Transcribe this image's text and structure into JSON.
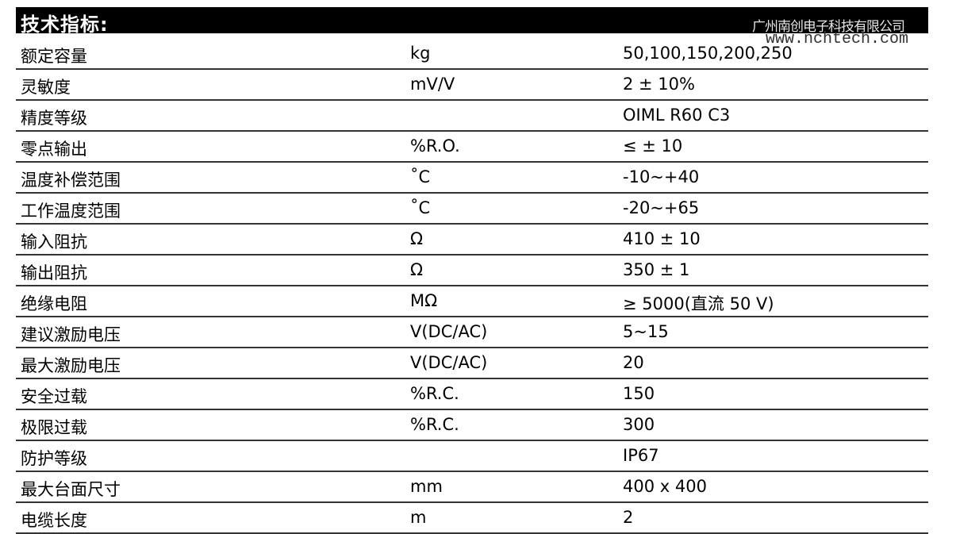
{
  "title": "技术指标:",
  "watermark": {
    "company": "广州南创电子科技有限公司",
    "url": "www.nchtech.com"
  },
  "rows": [
    [
      "额定容量",
      "kg",
      "50,100,150,200,250"
    ],
    [
      "灵敏度",
      "mV/V",
      "2 ± 10%"
    ],
    [
      "精度等级",
      "",
      "OIML R60 C3"
    ],
    [
      "零点输出",
      "%R.O.",
      "≤ ± 10"
    ],
    [
      "温度补偿范围",
      "˚C",
      "-10~+40"
    ],
    [
      "工作温度范围",
      "˚C",
      "-20~+65"
    ],
    [
      "输入阻抗",
      "Ω",
      "410 ± 10"
    ],
    [
      "输出阻抗",
      "Ω",
      "350 ± 1"
    ],
    [
      "绝缘电阻",
      "MΩ",
      "≥ 5000(直流 50 V)"
    ],
    [
      "建议激励电压",
      "V(DC/AC)",
      "5~15"
    ],
    [
      "最大激励电压",
      "V(DC/AC)",
      "20"
    ],
    [
      "安全过载",
      "%R.C.",
      "150"
    ],
    [
      "极限过载",
      "%R.C.",
      "300"
    ],
    [
      "防护等级",
      "",
      "IP67"
    ],
    [
      "最大台面尺寸",
      "mm",
      "400 x 400"
    ],
    [
      "电缆长度",
      "m",
      "2"
    ]
  ]
}
